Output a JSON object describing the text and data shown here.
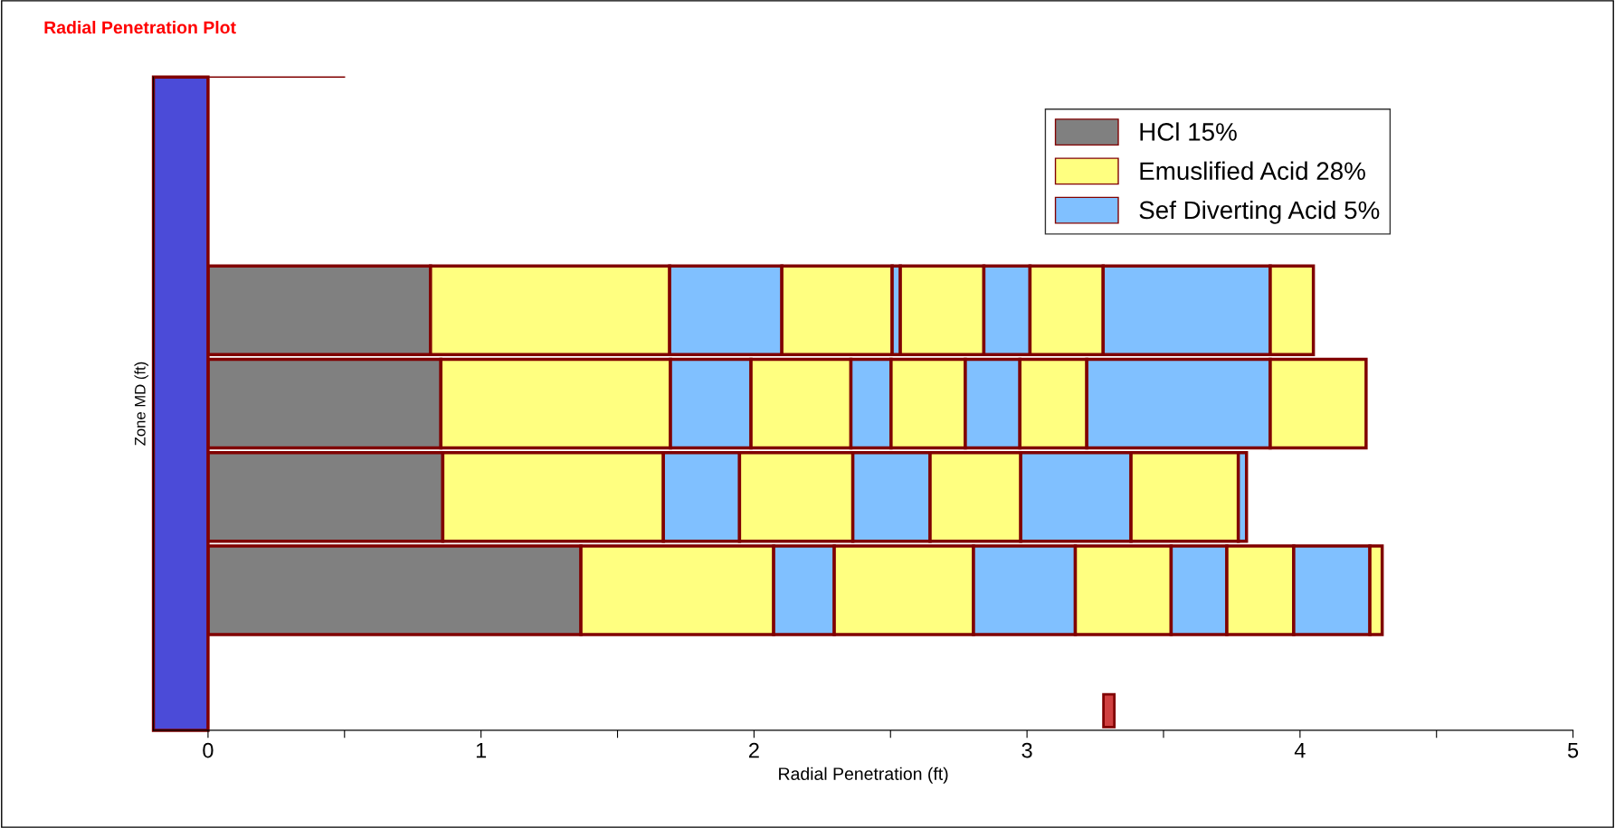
{
  "chart_data": {
    "type": "bar",
    "orientation": "horizontal",
    "stacked": true,
    "title": "Radial Penetration Plot",
    "xlabel": "Radial Penetration (ft)",
    "ylabel": "Zone MD (ft)",
    "categories": [
      null,
      null,
      null,
      null,
      null,
      null,
      null
    ],
    "series": [
      {
        "name": "HCl 15%",
        "color": "#808080",
        "values": [
          null,
          null,
          0.815,
          0.853,
          0.86,
          1.366,
          null
        ]
      },
      {
        "name": "Emuslified Acid 28%",
        "color": "#ffff80",
        "values": [
          null,
          null,
          0.876,
          0.841,
          0.808,
          0.706,
          null
        ]
      },
      {
        "name": "Sef Diverting Acid 5%",
        "color": "#80c0ff",
        "values": [
          null,
          null,
          0.411,
          0.295,
          0.279,
          0.222,
          null
        ]
      },
      {
        "color": "#ffff80",
        "values": [
          null,
          null,
          0.404,
          0.366,
          0.415,
          0.51,
          null
        ]
      },
      {
        "color": "#80c0ff",
        "values": [
          null,
          null,
          0.03,
          0.147,
          0.283,
          0.373,
          null
        ]
      },
      {
        "color": "#ffff80",
        "values": [
          null,
          null,
          0.306,
          0.272,
          0.332,
          0.351,
          null
        ]
      },
      {
        "color": "#80c0ff",
        "values": [
          null,
          null,
          0.169,
          0.2,
          0.404,
          0.204,
          null
        ]
      },
      {
        "color": "#ffff80",
        "values": [
          null,
          null,
          0.268,
          0.245,
          0.393,
          0.245,
          null
        ]
      },
      {
        "color": "#80c0ff",
        "values": [
          null,
          null,
          0.612,
          0.672,
          0.03,
          0.279,
          null
        ]
      },
      {
        "color": "#ffff80",
        "values": [
          null,
          null,
          0.158,
          0.351,
          null,
          0.045,
          null
        ]
      }
    ],
    "xlim": [
      -0.2,
      5
    ],
    "xticks": [
      0,
      {
        "value": 0.5,
        "label": null
      },
      1,
      {
        "value": 1.5,
        "label": null
      },
      2,
      {
        "value": 2.5,
        "label": null
      },
      3,
      {
        "value": 3.5,
        "label": null
      },
      4,
      {
        "value": 4.5,
        "label": null
      },
      5
    ],
    "tick_labels": "x",
    "grid": false,
    "legend": "top right"
  }
}
